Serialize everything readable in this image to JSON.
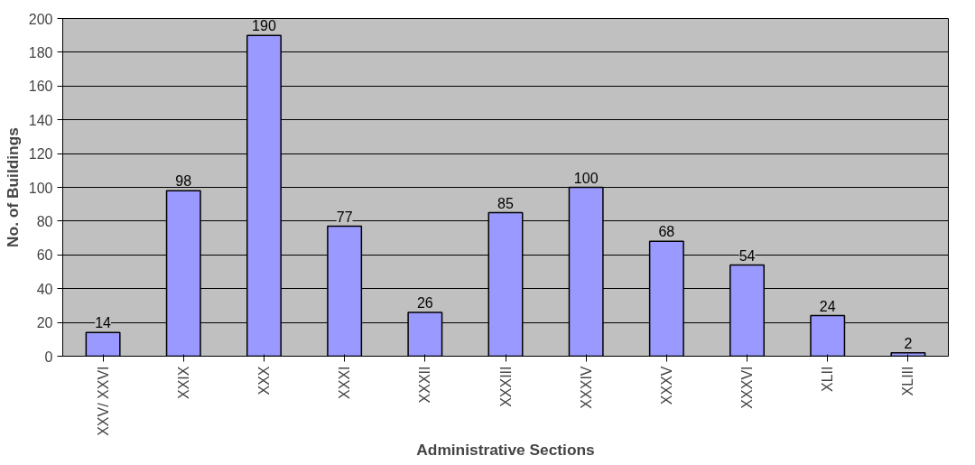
{
  "chart_data": {
    "type": "bar",
    "xlabel": "Administrative Sections",
    "ylabel": "No. of Buildings",
    "categories": [
      "XXV/ XXVI",
      "XXIX",
      "XXX",
      "XXXI",
      "XXXII",
      "XXXIII",
      "XXXIV",
      "XXXV",
      "XXXVI",
      "XLII",
      "XLIII"
    ],
    "values": [
      14,
      98,
      190,
      77,
      26,
      85,
      100,
      68,
      54,
      24,
      2
    ],
    "color": "#9999ff",
    "ylim": [
      0,
      200
    ],
    "yticks": [
      0,
      20,
      40,
      60,
      80,
      100,
      120,
      140,
      160,
      180,
      200
    ],
    "grid": "y",
    "data_labels": true
  }
}
